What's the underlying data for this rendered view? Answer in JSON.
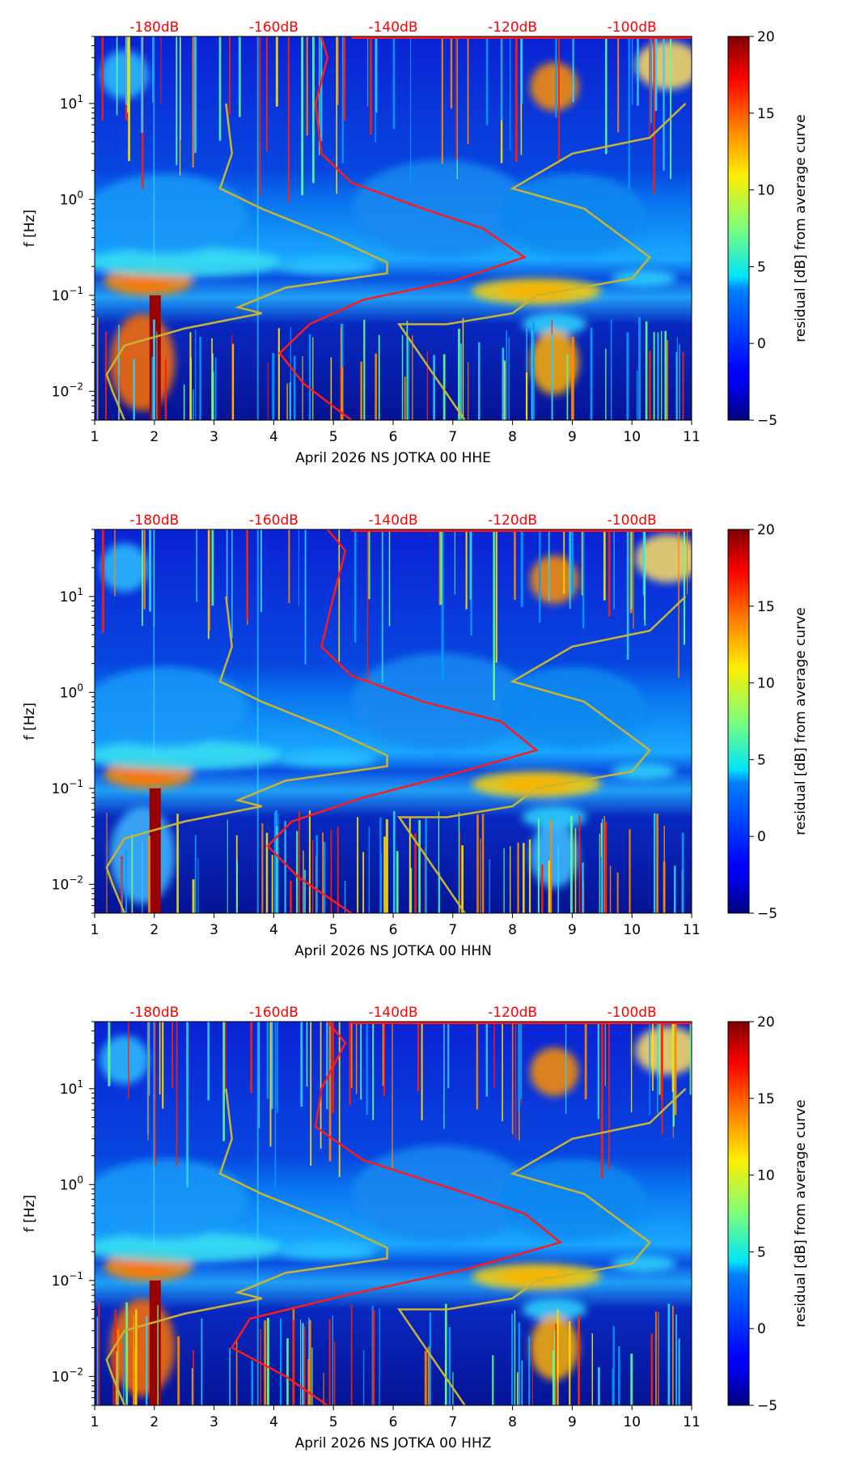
{
  "colorbar": {
    "label": "residual [dB] from average curve",
    "min": -5,
    "max": 20,
    "ticks": [
      "20",
      "15",
      "10",
      "5",
      "0",
      "−5"
    ],
    "tick_values": [
      20,
      15,
      10,
      5,
      0,
      -5
    ]
  },
  "shared": {
    "ylabel": "f [Hz]",
    "y_ticks": [
      {
        "exp": "1",
        "value": 10
      },
      {
        "exp": "0",
        "value": 1
      },
      {
        "exp": "−1",
        "value": 0.1
      },
      {
        "exp": "−2",
        "value": 0.01
      }
    ],
    "x_ticks": [
      "1",
      "2",
      "3",
      "4",
      "5",
      "6",
      "7",
      "8",
      "9",
      "10",
      "11"
    ],
    "db_labels": [
      "-180dB",
      "-160dB",
      "-140dB",
      "-120dB",
      "-100dB"
    ],
    "db_color": "#ff0000",
    "avg_curve_color": "#ff1a1a",
    "model_curve_color": "#c8b432"
  },
  "chart_data": [
    {
      "type": "heatmap",
      "title": "",
      "xlabel": "April 2026 NS JOTKA 00 HHE",
      "ylabel": "f [Hz]",
      "xlim": [
        1,
        11
      ],
      "ylim": [
        0.005,
        50
      ],
      "y_scale": "log",
      "top_axis_db": [
        -180,
        -160,
        -140,
        -120,
        -100
      ],
      "average_psd_curve_day": [
        [
          4.8,
          50
        ],
        [
          4.9,
          30
        ],
        [
          4.7,
          10
        ],
        [
          4.8,
          3
        ],
        [
          5.3,
          1.5
        ],
        [
          6.5,
          0.8
        ],
        [
          7.5,
          0.5
        ],
        [
          8.2,
          0.25
        ],
        [
          7,
          0.14
        ],
        [
          5.5,
          0.09
        ],
        [
          4.6,
          0.05
        ],
        [
          4.1,
          0.025
        ],
        [
          4.5,
          0.012
        ],
        [
          5.3,
          0.005
        ]
      ]
    },
    {
      "type": "heatmap",
      "title": "",
      "xlabel": "April 2026 NS JOTKA 00 HHN",
      "ylabel": "f [Hz]",
      "xlim": [
        1,
        11
      ],
      "ylim": [
        0.005,
        50
      ],
      "y_scale": "log",
      "top_axis_db": [
        -180,
        -160,
        -140,
        -120,
        -100
      ],
      "average_psd_curve_day": [
        [
          4.9,
          50
        ],
        [
          5.2,
          30
        ],
        [
          5.0,
          10
        ],
        [
          4.8,
          3
        ],
        [
          5.3,
          1.5
        ],
        [
          6.5,
          0.8
        ],
        [
          7.8,
          0.5
        ],
        [
          8.4,
          0.25
        ],
        [
          7,
          0.14
        ],
        [
          5.5,
          0.08
        ],
        [
          4.3,
          0.045
        ],
        [
          3.9,
          0.025
        ],
        [
          4.4,
          0.012
        ],
        [
          5.3,
          0.005
        ]
      ]
    },
    {
      "type": "heatmap",
      "title": "",
      "xlabel": "April 2026 NS JOTKA 00 HHZ",
      "ylabel": "f [Hz]",
      "xlim": [
        1,
        11
      ],
      "ylim": [
        0.005,
        50
      ],
      "y_scale": "log",
      "top_axis_db": [
        -180,
        -160,
        -140,
        -120,
        -100
      ],
      "average_psd_curve_day": [
        [
          4.9,
          50
        ],
        [
          5.2,
          30
        ],
        [
          4.8,
          10
        ],
        [
          4.7,
          4
        ],
        [
          5.5,
          1.8
        ],
        [
          7,
          0.9
        ],
        [
          8.2,
          0.5
        ],
        [
          8.8,
          0.25
        ],
        [
          7.2,
          0.13
        ],
        [
          5.2,
          0.07
        ],
        [
          3.6,
          0.04
        ],
        [
          3.3,
          0.02
        ],
        [
          4.2,
          0.01
        ],
        [
          4.9,
          0.005
        ]
      ]
    }
  ],
  "model_curves_day": {
    "low_noise": [
      [
        3.2,
        10
      ],
      [
        3.3,
        3
      ],
      [
        3.1,
        1.3
      ],
      [
        3.8,
        0.8
      ],
      [
        5,
        0.4
      ],
      [
        5.9,
        0.22
      ],
      [
        5.9,
        0.17
      ],
      [
        4.2,
        0.12
      ],
      [
        3.4,
        0.075
      ],
      [
        3.8,
        0.065
      ],
      [
        2.5,
        0.045
      ],
      [
        1.5,
        0.03
      ],
      [
        1.2,
        0.015
      ],
      [
        1.3,
        0.01
      ],
      [
        1.5,
        0.005
      ]
    ],
    "high_noise": [
      [
        10.9,
        10
      ],
      [
        10.3,
        4.4
      ],
      [
        9,
        3
      ],
      [
        8,
        1.3
      ],
      [
        9.2,
        0.8
      ],
      [
        10.3,
        0.25
      ],
      [
        10,
        0.15
      ],
      [
        8.4,
        0.1
      ],
      [
        8,
        0.065
      ],
      [
        6.9,
        0.05
      ],
      [
        6.1,
        0.05
      ],
      [
        7.2,
        0.005
      ]
    ]
  }
}
